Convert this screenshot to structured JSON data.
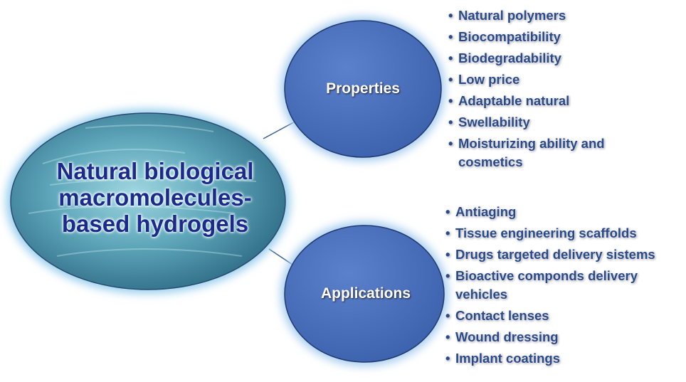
{
  "center": {
    "lines": [
      "Natural biological",
      "macromolecules-",
      "based hydrogels"
    ]
  },
  "branches": [
    {
      "label": "Properties",
      "items": [
        "Natural polymers",
        "Biocompatibility",
        "Biodegradability",
        "Low price",
        "Adaptable natural",
        "Swellability",
        "Moisturizing ability and cosmetics"
      ]
    },
    {
      "label": "Applications",
      "items": [
        "Antiaging",
        "Tissue engineering scaffolds",
        "Drugs targeted delivery sistems",
        "Bioactive componds delivery vehicles",
        "Contact lenses",
        "Wound dressing",
        "Implant coatings"
      ]
    }
  ]
}
